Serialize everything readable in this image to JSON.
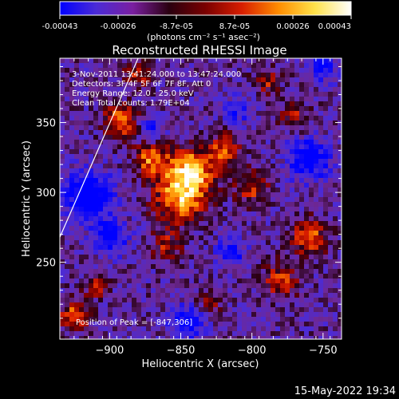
{
  "colorbar": {
    "tick_labels": [
      "-0.00043",
      "-0.00026",
      "-8.7e-05",
      "8.7e-05",
      "0.00026",
      "0.00043"
    ],
    "range": [
      -0.00043,
      0.00043
    ],
    "unit_label": "(photons cm⁻² s⁻¹ asec⁻²)",
    "colors": [
      "#0000ff",
      "#4b2bd6",
      "#7a1fa0",
      "#2a0010",
      "#7a0000",
      "#d81e00",
      "#ff8c00",
      "#ffe24a",
      "#ffffff"
    ]
  },
  "annotations": {
    "time_range": "3-Nov-2011 13:41:24.000 to 13:47:24.000",
    "detectors": "Detectors: 3F 4F 5F 6F 7F 8F, Att 0",
    "energy_range": "Energy Range: 12.0 - 25.0 keV",
    "method": "Clean   Total counts: 1.79E+04",
    "peak": "Position of Peak = [-847,306]"
  },
  "footer": {
    "timestamp": "15-May-2022 19:34"
  },
  "chart_data": {
    "type": "heatmap",
    "title": "Reconstructed RHESSI Image",
    "xlabel": "Heliocentric X (arcsec)",
    "ylabel": "Heliocentric Y (arcsec)",
    "xlim": [
      -935,
      -737
    ],
    "ylim": [
      195,
      396
    ],
    "x_ticks": [
      -900,
      -850,
      -800,
      -750
    ],
    "x_tick_labels": [
      "−900",
      "−850",
      "−800",
      "−750"
    ],
    "y_ticks": [
      250,
      300,
      350
    ],
    "y_tick_labels": [
      "250",
      "300",
      "350"
    ],
    "peak_position": [
      -847,
      306
    ],
    "limb_line": [
      [
        -935,
        268
      ],
      [
        -880,
        396
      ]
    ],
    "hot_regions": [
      {
        "x": -850,
        "y": 300,
        "r": 18,
        "v": 1.0
      },
      {
        "x": -842,
        "y": 318,
        "r": 14,
        "v": 0.9
      },
      {
        "x": -870,
        "y": 325,
        "r": 12,
        "v": 0.8
      },
      {
        "x": -893,
        "y": 352,
        "r": 11,
        "v": 0.85
      },
      {
        "x": -820,
        "y": 330,
        "r": 12,
        "v": 0.7
      },
      {
        "x": -800,
        "y": 305,
        "r": 11,
        "v": 0.6
      },
      {
        "x": -760,
        "y": 270,
        "r": 12,
        "v": 0.75
      },
      {
        "x": -780,
        "y": 240,
        "r": 12,
        "v": 0.6
      },
      {
        "x": -925,
        "y": 215,
        "r": 9,
        "v": 0.9
      },
      {
        "x": -910,
        "y": 235,
        "r": 8,
        "v": 0.5
      },
      {
        "x": -860,
        "y": 265,
        "r": 10,
        "v": 0.5
      },
      {
        "x": -830,
        "y": 225,
        "r": 9,
        "v": 0.4
      },
      {
        "x": -880,
        "y": 385,
        "r": 9,
        "v": 0.6
      },
      {
        "x": -790,
        "y": 380,
        "r": 9,
        "v": 0.5
      },
      {
        "x": -770,
        "y": 355,
        "r": 10,
        "v": 0.5
      }
    ],
    "cold_regions": [
      {
        "x": -915,
        "y": 300,
        "r": 16,
        "v": -0.9
      },
      {
        "x": -900,
        "y": 270,
        "r": 12,
        "v": -0.7
      },
      {
        "x": -760,
        "y": 325,
        "r": 14,
        "v": -0.8
      },
      {
        "x": -815,
        "y": 260,
        "r": 10,
        "v": -0.6
      },
      {
        "x": -845,
        "y": 210,
        "r": 12,
        "v": -0.7
      },
      {
        "x": -750,
        "y": 390,
        "r": 10,
        "v": -0.6
      },
      {
        "x": -870,
        "y": 345,
        "r": 8,
        "v": -0.5
      },
      {
        "x": -810,
        "y": 360,
        "r": 9,
        "v": -0.5
      }
    ],
    "colorbar_range": [
      -0.00043,
      0.00043
    ]
  }
}
